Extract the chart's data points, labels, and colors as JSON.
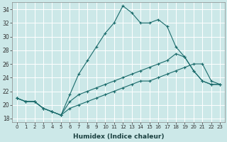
{
  "xlabel": "Humidex (Indice chaleur)",
  "bg_color": "#cce8e8",
  "grid_color": "#ffffff",
  "line_color": "#1a6b6b",
  "xlim": [
    -0.5,
    23.5
  ],
  "ylim": [
    17.5,
    35.0
  ],
  "xticks": [
    0,
    1,
    2,
    3,
    4,
    5,
    6,
    7,
    8,
    9,
    10,
    11,
    12,
    13,
    14,
    15,
    16,
    17,
    18,
    19,
    20,
    21,
    22,
    23
  ],
  "yticks": [
    18,
    20,
    22,
    24,
    26,
    28,
    30,
    32,
    34
  ],
  "line1_x": [
    0,
    1,
    2,
    3,
    4,
    5,
    6,
    7,
    8,
    9,
    10,
    11,
    12,
    13,
    14,
    15,
    16,
    17,
    18,
    19,
    20,
    21,
    22,
    23
  ],
  "line1_y": [
    21.0,
    20.5,
    20.5,
    19.5,
    19.0,
    18.5,
    21.5,
    24.5,
    26.5,
    28.5,
    30.5,
    32.0,
    34.5,
    33.5,
    32.0,
    32.0,
    32.5,
    31.5,
    28.5,
    27.0,
    25.0,
    23.5,
    23.0,
    23.0
  ],
  "line2_x": [
    0,
    1,
    2,
    3,
    4,
    5,
    6,
    7,
    8,
    9,
    10,
    11,
    12,
    13,
    14,
    15,
    16,
    17,
    18,
    19,
    20,
    21,
    22,
    23
  ],
  "line2_y": [
    21.0,
    20.5,
    20.5,
    19.5,
    19.0,
    18.5,
    19.5,
    20.0,
    20.5,
    21.0,
    21.5,
    22.0,
    22.5,
    23.0,
    23.5,
    23.5,
    24.0,
    24.5,
    25.0,
    25.5,
    26.0,
    26.0,
    23.5,
    23.0
  ],
  "line3_x": [
    0,
    1,
    2,
    3,
    4,
    5,
    6,
    7,
    8,
    9,
    10,
    11,
    12,
    13,
    14,
    15,
    16,
    17,
    18,
    19,
    20,
    21,
    22,
    23
  ],
  "line3_y": [
    21.0,
    20.5,
    20.5,
    19.5,
    19.0,
    18.5,
    20.5,
    21.5,
    22.0,
    22.5,
    23.0,
    23.5,
    24.0,
    24.5,
    25.0,
    25.5,
    26.0,
    26.5,
    27.5,
    27.0,
    25.0,
    23.5,
    23.0,
    23.0
  ]
}
